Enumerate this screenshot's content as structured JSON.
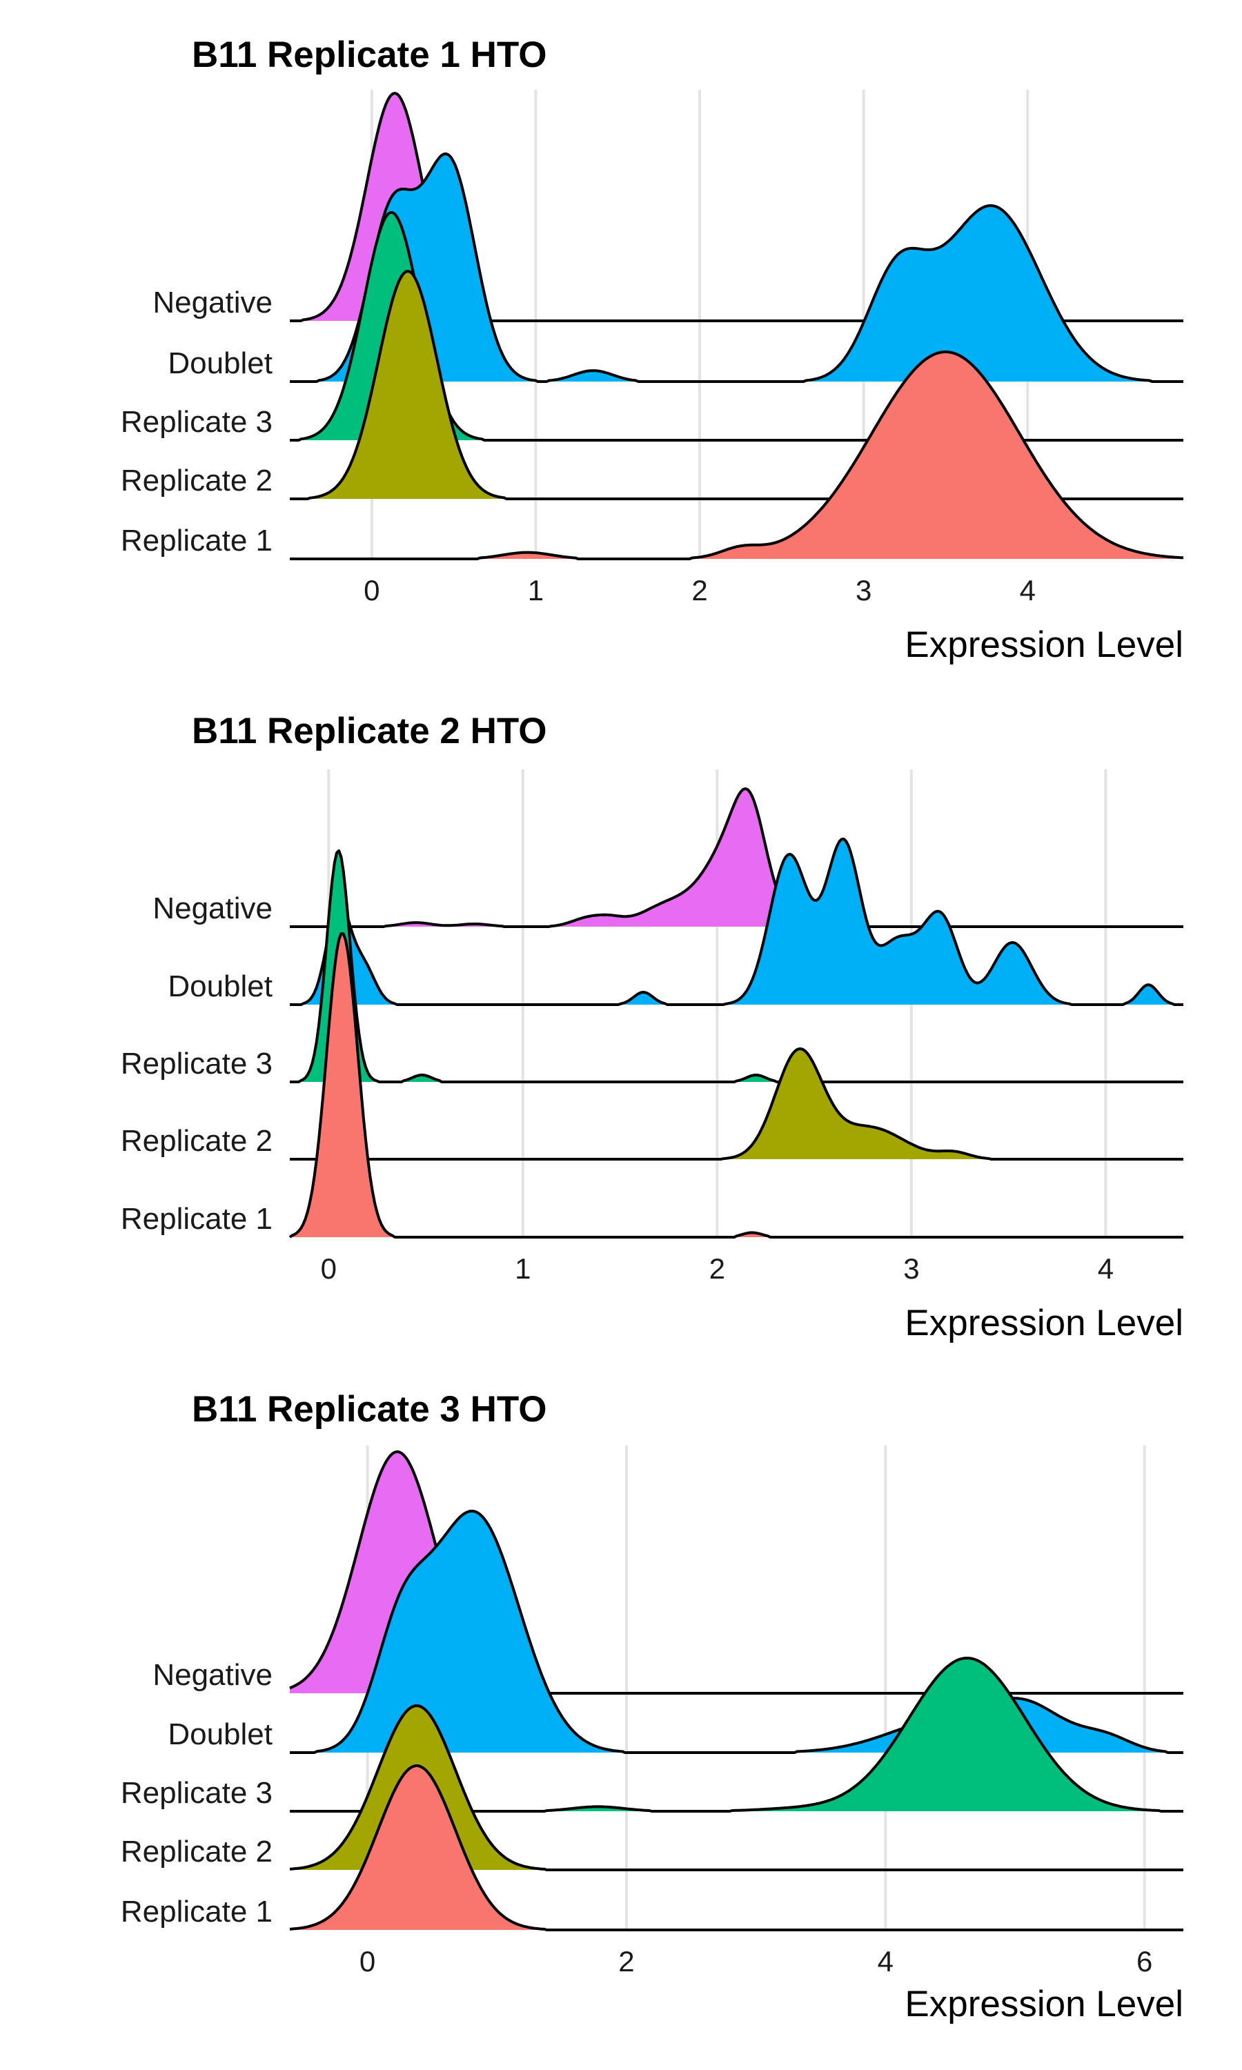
{
  "chart_data": [
    {
      "type": "area",
      "subtype": "ridgeline",
      "title": "B11 Replicate 1 HTO",
      "xlabel": "Expression Level",
      "ylabel": "",
      "xlim": [
        -0.5,
        4.95
      ],
      "xticks": [
        0,
        1,
        2,
        3,
        4
      ],
      "grid": true,
      "legend": "none",
      "categories": [
        "Negative",
        "Doublet",
        "Replicate 3",
        "Replicate 2",
        "Replicate 1"
      ],
      "series": [
        {
          "category": "Replicate 1",
          "color": "#F8766D",
          "peaks": [
            [
              0.95,
              0.015,
              0.15
            ],
            [
              2.25,
              0.02,
              0.12
            ],
            [
              3.5,
              0.48,
              0.45
            ]
          ]
        },
        {
          "category": "Replicate 2",
          "color": "#A3A500",
          "peaks": [
            [
              0.22,
              1.0,
              0.18
            ]
          ]
        },
        {
          "category": "Replicate 3",
          "color": "#00BF7D",
          "peaks": [
            [
              0.12,
              1.0,
              0.17
            ]
          ]
        },
        {
          "category": "Doublet",
          "color": "#00B0F6",
          "peaks": [
            [
              0.12,
              0.3,
              0.14
            ],
            [
              0.47,
              0.4,
              0.16
            ],
            [
              1.35,
              0.02,
              0.12
            ],
            [
              3.2,
              0.18,
              0.18
            ],
            [
              3.78,
              0.32,
              0.3
            ]
          ]
        },
        {
          "category": "Negative",
          "color": "#E76BF3",
          "peaks": [
            [
              0.14,
              1.0,
              0.17
            ]
          ]
        }
      ]
    },
    {
      "type": "area",
      "subtype": "ridgeline",
      "title": "B11 Replicate 2 HTO",
      "xlabel": "Expression Level",
      "ylabel": "",
      "xlim": [
        -0.2,
        4.4
      ],
      "xticks": [
        0,
        1,
        2,
        3,
        4
      ],
      "grid": true,
      "legend": "none",
      "categories": [
        "Negative",
        "Doublet",
        "Replicate 3",
        "Replicate 2",
        "Replicate 1"
      ],
      "series": [
        {
          "category": "Replicate 1",
          "color": "#F8766D",
          "peaks": [
            [
              0.07,
              1.0,
              0.08
            ],
            [
              2.18,
              0.015,
              0.05
            ]
          ]
        },
        {
          "category": "Replicate 2",
          "color": "#A3A500",
          "peaks": [
            [
              2.42,
              1.0,
              0.12
            ],
            [
              2.78,
              0.3,
              0.18
            ],
            [
              3.22,
              0.06,
              0.08
            ]
          ]
        },
        {
          "category": "Replicate 3",
          "color": "#00BF7D",
          "peaks": [
            [
              0.05,
              1.0,
              0.06
            ],
            [
              0.48,
              0.03,
              0.05
            ],
            [
              2.2,
              0.03,
              0.05
            ]
          ]
        },
        {
          "category": "Doublet",
          "color": "#00B0F6",
          "peaks": [
            [
              0.05,
              0.4,
              0.06
            ],
            [
              0.18,
              0.15,
              0.06
            ],
            [
              1.62,
              0.05,
              0.05
            ],
            [
              2.37,
              0.6,
              0.1
            ],
            [
              2.65,
              0.65,
              0.09
            ],
            [
              2.93,
              0.25,
              0.1
            ],
            [
              3.15,
              0.35,
              0.09
            ],
            [
              3.52,
              0.25,
              0.1
            ],
            [
              4.22,
              0.08,
              0.05
            ]
          ]
        },
        {
          "category": "Negative",
          "color": "#E76BF3",
          "peaks": [
            [
              0.45,
              0.03,
              0.08
            ],
            [
              0.75,
              0.02,
              0.08
            ],
            [
              1.33,
              0.06,
              0.08
            ],
            [
              1.45,
              0.05,
              0.07
            ],
            [
              1.75,
              0.16,
              0.14
            ],
            [
              2.08,
              0.6,
              0.14
            ],
            [
              2.17,
              0.5,
              0.08
            ]
          ]
        }
      ]
    },
    {
      "type": "area",
      "subtype": "ridgeline",
      "title": "B11 Replicate 3 HTO",
      "xlabel": "Expression Level",
      "ylabel": "",
      "xlim": [
        -0.6,
        6.3
      ],
      "xticks": [
        0,
        2,
        4,
        6
      ],
      "grid": true,
      "legend": "none",
      "categories": [
        "Negative",
        "Doublet",
        "Replicate 3",
        "Replicate 2",
        "Replicate 1"
      ],
      "series": [
        {
          "category": "Replicate 1",
          "color": "#F8766D",
          "peaks": [
            [
              0.38,
              1.0,
              0.3
            ]
          ]
        },
        {
          "category": "Replicate 2",
          "color": "#A3A500",
          "peaks": [
            [
              0.38,
              1.0,
              0.3
            ]
          ]
        },
        {
          "category": "Replicate 3",
          "color": "#00BF7D",
          "peaks": [
            [
              1.78,
              0.03,
              0.2
            ],
            [
              3.3,
              0.015,
              0.3
            ],
            [
              4.63,
              1.0,
              0.45
            ]
          ]
        },
        {
          "category": "Doublet",
          "color": "#00B0F6",
          "peaks": [
            [
              0.25,
              0.2,
              0.2
            ],
            [
              0.82,
              0.5,
              0.35
            ],
            [
              4.5,
              0.07,
              0.45
            ],
            [
              5.1,
              0.08,
              0.3
            ],
            [
              5.7,
              0.03,
              0.2
            ]
          ]
        },
        {
          "category": "Negative",
          "color": "#E76BF3",
          "peaks": [
            [
              0.23,
              1.0,
              0.3
            ]
          ]
        }
      ]
    }
  ]
}
